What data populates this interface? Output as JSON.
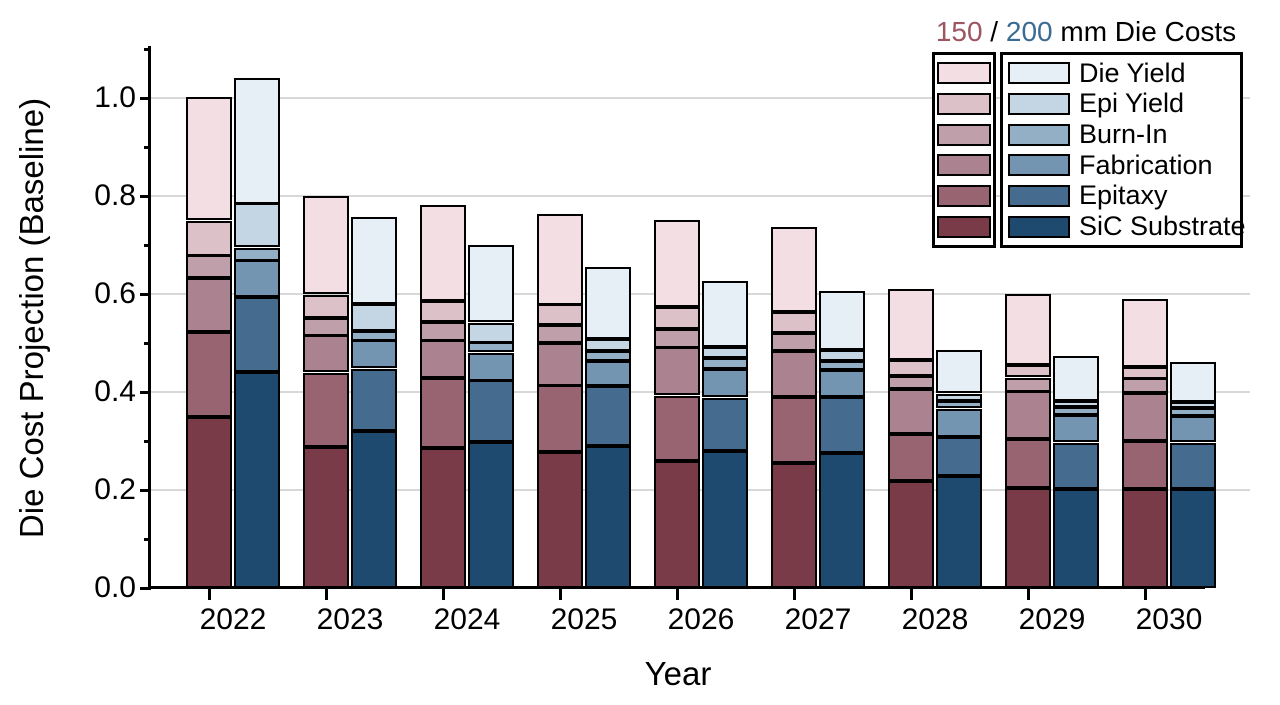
{
  "title": {
    "part_150": "150",
    "separator": " / ",
    "part_200": "200",
    "rest": " mm Die Costs",
    "color_150": "#9d5560",
    "color_200": "#3a6b93"
  },
  "axes": {
    "y_label": "Die Cost Projection (Baseline)",
    "x_label": "Year",
    "y_tick_labels": [
      "0.0",
      "0.2",
      "0.4",
      "0.6",
      "0.8",
      "1.0"
    ],
    "x_tick_labels": [
      "2022",
      "2023",
      "2024",
      "2025",
      "2026",
      "2027",
      "2028",
      "2029",
      "2030"
    ]
  },
  "chart_data": {
    "type": "bar",
    "stacked": true,
    "grid": true,
    "legend_position": "top-right",
    "title": "150 / 200 mm Die Costs",
    "xlabel": "Year",
    "ylabel": "Die Cost Projection (Baseline)",
    "ylim": [
      0,
      1.1
    ],
    "y_major_ticks": [
      0.0,
      0.2,
      0.4,
      0.6,
      0.8,
      1.0
    ],
    "y_minor_ticks": [
      0.1,
      0.3,
      0.5,
      0.7,
      0.9,
      1.1
    ],
    "categories": [
      "2022",
      "2023",
      "2024",
      "2025",
      "2026",
      "2027",
      "2028",
      "2029",
      "2030"
    ],
    "segments_bottom_to_top": [
      "SiC Substrate",
      "Epitaxy",
      "Fabrication",
      "Burn-In",
      "Epi Yield",
      "Die Yield"
    ],
    "legend_entries_top_to_bottom": [
      "Die Yield",
      "Epi Yield",
      "Burn-In",
      "Fabrication",
      "Epitaxy",
      "SiC Substrate"
    ],
    "series": [
      {
        "name": "150 mm",
        "colors_bottom_to_top": [
          "#7a3b48",
          "#986471",
          "#aa8290",
          "#bf9fa9",
          "#dcc1c8",
          "#f2dee3"
        ],
        "stacks": [
          [
            0.348,
            0.174,
            0.11,
            0.046,
            0.072,
            0.25
          ],
          [
            0.288,
            0.152,
            0.075,
            0.037,
            0.047,
            0.199
          ],
          [
            0.285,
            0.143,
            0.077,
            0.038,
            0.042,
            0.195
          ],
          [
            0.277,
            0.136,
            0.087,
            0.036,
            0.042,
            0.185
          ],
          [
            0.26,
            0.133,
            0.097,
            0.039,
            0.044,
            0.177
          ],
          [
            0.256,
            0.134,
            0.094,
            0.037,
            0.043,
            0.174
          ],
          [
            0.219,
            0.095,
            0.092,
            0.026,
            0.033,
            0.144
          ],
          [
            0.204,
            0.1,
            0.097,
            0.029,
            0.025,
            0.145
          ],
          [
            0.202,
            0.097,
            0.098,
            0.03,
            0.025,
            0.138
          ]
        ],
        "totals": [
          1.0,
          0.8,
          0.78,
          0.76,
          0.75,
          0.74,
          0.61,
          0.6,
          0.59
        ]
      },
      {
        "name": "200 mm",
        "colors_bottom_to_top": [
          "#1f4a70",
          "#456b8e",
          "#7495b2",
          "#93afc5",
          "#c4d5e4",
          "#e6eef6"
        ],
        "stacks": [
          [
            0.44,
            0.153,
            0.075,
            0.027,
            0.089,
            0.258
          ],
          [
            0.321,
            0.127,
            0.057,
            0.02,
            0.055,
            0.177
          ],
          [
            0.297,
            0.126,
            0.058,
            0.02,
            0.041,
            0.157
          ],
          [
            0.29,
            0.123,
            0.051,
            0.02,
            0.024,
            0.147
          ],
          [
            0.28,
            0.109,
            0.058,
            0.022,
            0.023,
            0.135
          ],
          [
            0.275,
            0.115,
            0.055,
            0.019,
            0.022,
            0.12
          ],
          [
            0.229,
            0.08,
            0.058,
            0.015,
            0.015,
            0.087
          ],
          [
            0.203,
            0.094,
            0.056,
            0.016,
            0.013,
            0.091
          ],
          [
            0.203,
            0.094,
            0.053,
            0.017,
            0.013,
            0.081
          ]
        ],
        "totals": [
          1.04,
          0.76,
          0.7,
          0.66,
          0.63,
          0.61,
          0.49,
          0.47,
          0.46
        ]
      }
    ]
  }
}
